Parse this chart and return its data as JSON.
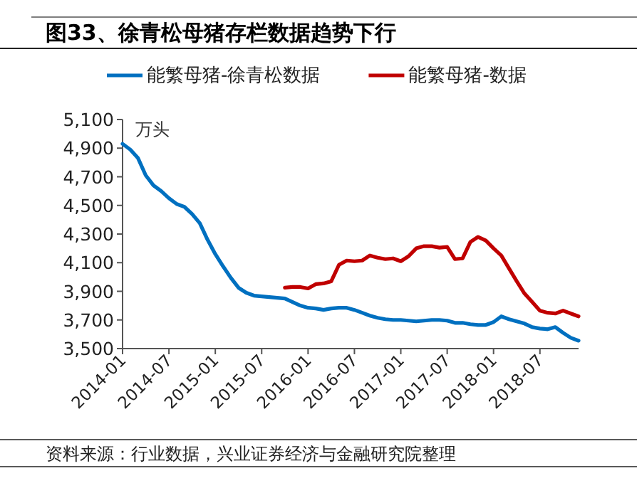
{
  "chart_data": {
    "type": "line",
    "title": "图33、徐青松母猪存栏数据趋势下行",
    "ylabel": "万头",
    "xlim": [
      "2014-01",
      "2018-12"
    ],
    "xticks": [
      "2014-01",
      "2014-07",
      "2015-01",
      "2015-07",
      "2016-01",
      "2016-07",
      "2017-01",
      "2017-07",
      "2018-01",
      "2018-07"
    ],
    "ylim": [
      3500,
      5100
    ],
    "yticks": [
      {
        "value": 3500,
        "label": "3,500"
      },
      {
        "value": 3700,
        "label": "3,700"
      },
      {
        "value": 3900,
        "label": "3,900"
      },
      {
        "value": 4100,
        "label": "4,100"
      },
      {
        "value": 4300,
        "label": "4,300"
      },
      {
        "value": 4500,
        "label": "4,500"
      },
      {
        "value": 4700,
        "label": "4,700"
      },
      {
        "value": 4900,
        "label": "4,900"
      },
      {
        "value": 5100,
        "label": "5,100"
      }
    ],
    "grid": false,
    "legend": "top",
    "marker": "none",
    "line_style": "solid",
    "annotations": [
      "资料来源：行业数据，兴业证券经济与金融研究院整理"
    ],
    "series": [
      {
        "name": "能繁母猪-徐青松数据",
        "color": "#0070c0",
        "x": [
          "2014-01",
          "2014-02",
          "2014-03",
          "2014-04",
          "2014-05",
          "2014-06",
          "2014-07",
          "2014-08",
          "2014-09",
          "2014-10",
          "2014-11",
          "2014-12",
          "2015-01",
          "2015-02",
          "2015-03",
          "2015-04",
          "2015-05",
          "2015-06",
          "2015-07",
          "2015-08",
          "2015-09",
          "2015-10",
          "2015-11",
          "2015-12",
          "2016-01",
          "2016-02",
          "2016-03",
          "2016-04",
          "2016-05",
          "2016-06",
          "2016-07",
          "2016-08",
          "2016-09",
          "2016-10",
          "2016-11",
          "2016-12",
          "2017-01",
          "2017-02",
          "2017-03",
          "2017-04",
          "2017-05",
          "2017-06",
          "2017-07",
          "2017-08",
          "2017-09",
          "2017-10",
          "2017-11",
          "2017-12",
          "2018-01",
          "2018-02",
          "2018-03",
          "2018-04",
          "2018-05",
          "2018-06",
          "2018-07",
          "2018-08",
          "2018-09",
          "2018-10",
          "2018-11",
          "2018-12"
        ],
        "values": [
          4930,
          4890,
          4830,
          4710,
          4640,
          4600,
          4550,
          4510,
          4490,
          4440,
          4375,
          4260,
          4160,
          4075,
          3995,
          3925,
          3890,
          3870,
          3865,
          3860,
          3855,
          3850,
          3825,
          3800,
          3785,
          3780,
          3770,
          3780,
          3785,
          3785,
          3770,
          3750,
          3730,
          3715,
          3705,
          3700,
          3700,
          3695,
          3690,
          3695,
          3700,
          3700,
          3695,
          3680,
          3680,
          3670,
          3665,
          3665,
          3685,
          3725,
          3705,
          3690,
          3675,
          3650,
          3640,
          3635,
          3650,
          3610,
          3575,
          3555
        ]
      },
      {
        "name": "能繁母猪-数据",
        "color": "#c00000",
        "x": [
          "2015-10",
          "2015-11",
          "2015-12",
          "2016-01",
          "2016-02",
          "2016-03",
          "2016-04",
          "2016-05",
          "2016-06",
          "2016-07",
          "2016-08",
          "2016-09",
          "2016-10",
          "2016-11",
          "2016-12",
          "2017-01",
          "2017-02",
          "2017-03",
          "2017-04",
          "2017-05",
          "2017-06",
          "2017-07",
          "2017-08",
          "2017-09",
          "2017-10",
          "2017-11",
          "2017-12",
          "2018-01",
          "2018-02",
          "2018-03",
          "2018-04",
          "2018-05",
          "2018-06",
          "2018-07",
          "2018-08",
          "2018-09",
          "2018-10",
          "2018-11",
          "2018-12"
        ],
        "values": [
          3925,
          3930,
          3930,
          3920,
          3950,
          3955,
          3970,
          4085,
          4115,
          4110,
          4115,
          4150,
          4135,
          4125,
          4130,
          4110,
          4145,
          4200,
          4215,
          4215,
          4205,
          4210,
          4125,
          4130,
          4245,
          4280,
          4255,
          4200,
          4150,
          4060,
          3970,
          3885,
          3825,
          3765,
          3750,
          3745,
          3765,
          3745,
          3725
        ]
      }
    ]
  }
}
